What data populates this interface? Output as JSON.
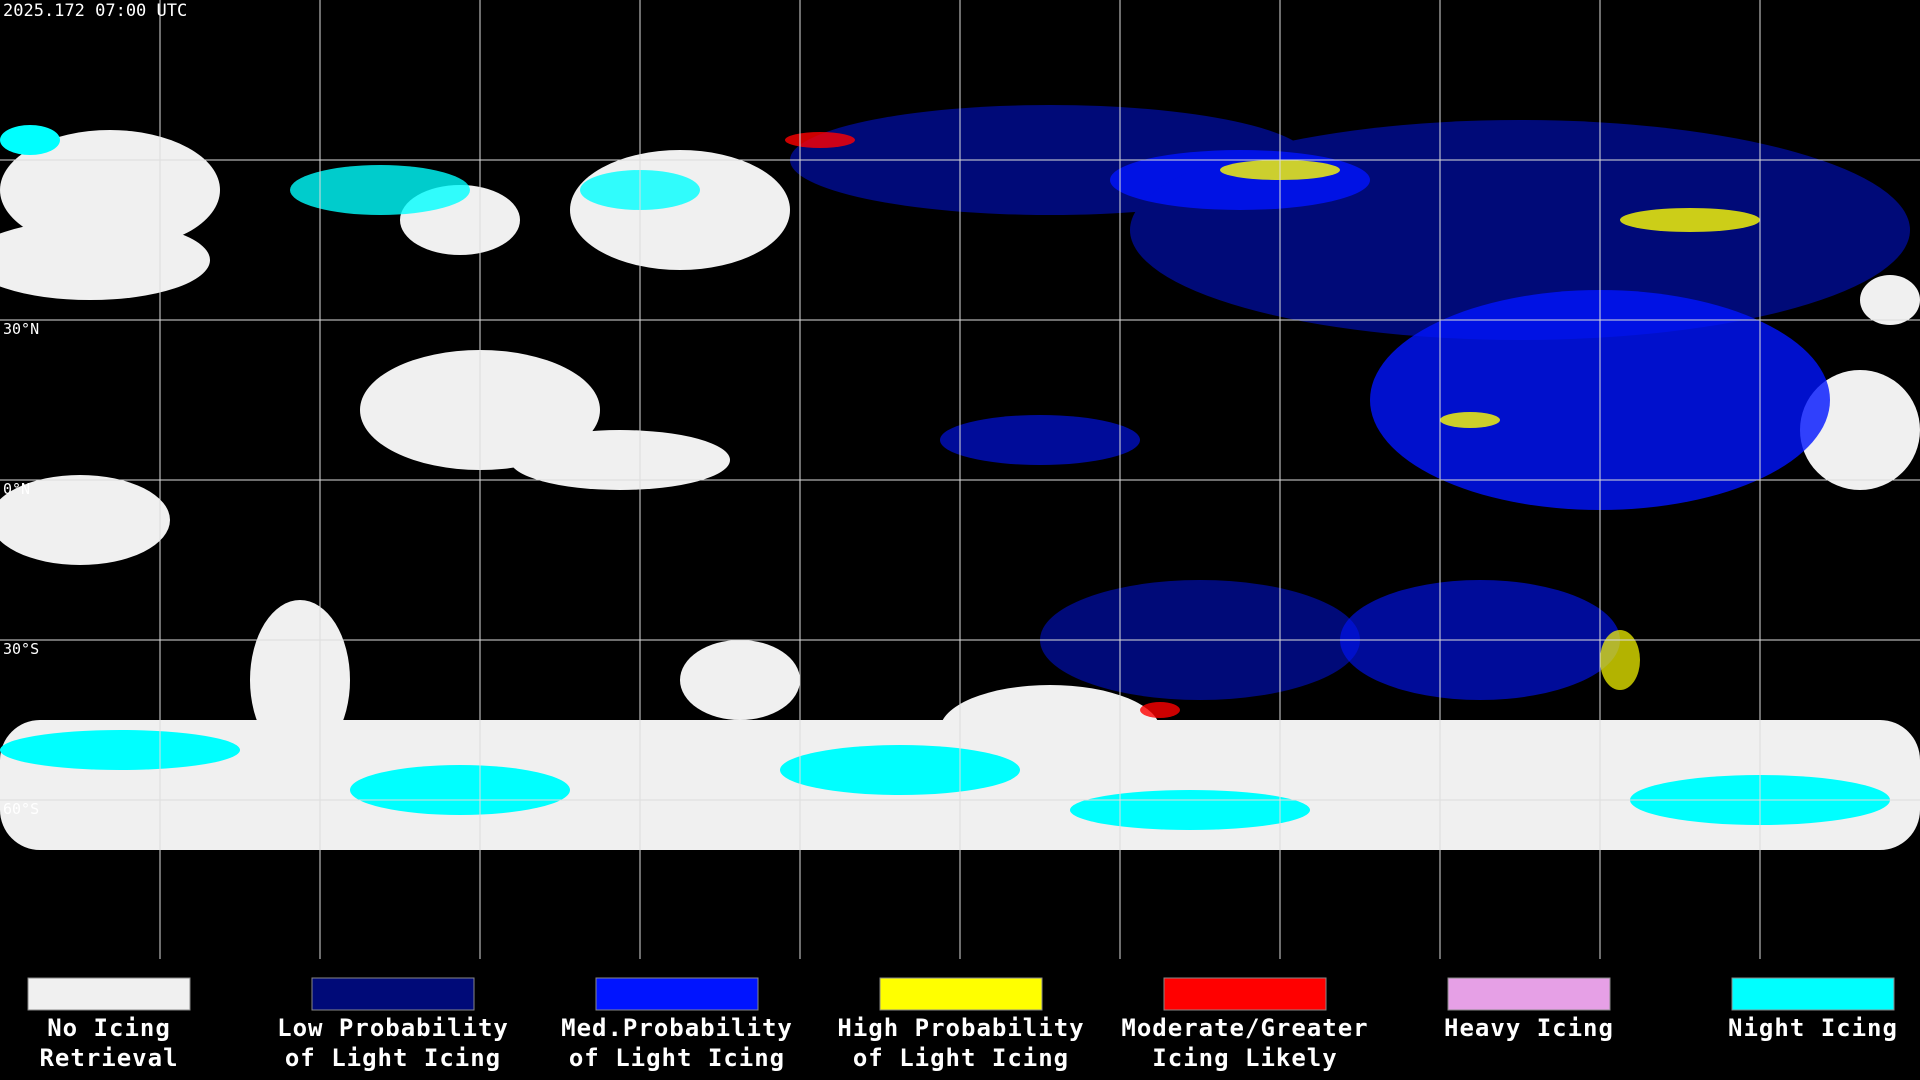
{
  "header": {
    "title": "2025.172 07:00 UTC"
  },
  "latitude_labels": [
    "30°N",
    "0°N",
    "30°S",
    "60°S"
  ],
  "legend": [
    {
      "lines": [
        "No Icing",
        "Retrieval"
      ],
      "color": "#f0f0f0"
    },
    {
      "lines": [
        "Low Probability",
        "of Light Icing"
      ],
      "color": "#000a78"
    },
    {
      "lines": [
        "Med.Probability",
        "of Light Icing"
      ],
      "color": "#0014ff"
    },
    {
      "lines": [
        "High Probability",
        "of Light Icing"
      ],
      "color": "#ffff00"
    },
    {
      "lines": [
        "Moderate/Greater",
        "Icing Likely"
      ],
      "color": "#ff0000"
    },
    {
      "lines": [
        "Heavy Icing"
      ],
      "color": "#e6a0e6"
    },
    {
      "lines": [
        "Night Icing"
      ],
      "color": "#00ffff"
    }
  ]
}
